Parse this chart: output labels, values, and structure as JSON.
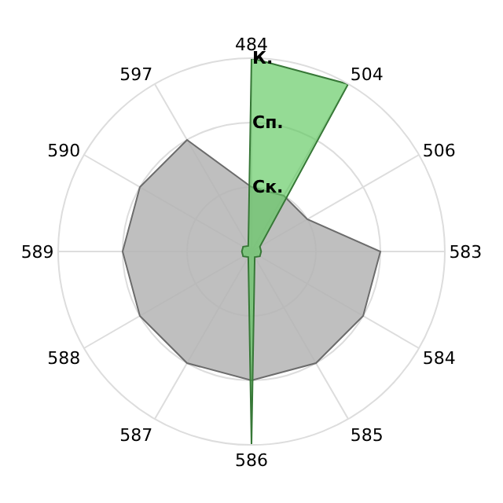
{
  "chart_data": {
    "type": "radar",
    "categories": [
      "484",
      "504",
      "506",
      "583",
      "584",
      "585",
      "586",
      "587",
      "588",
      "589",
      "590",
      "597"
    ],
    "series": [
      {
        "color": "#b4b4b4",
        "values": [
          1,
          1,
          1,
          2,
          2,
          2,
          2,
          2,
          2,
          2,
          2,
          2
        ]
      },
      {
        "color": "#5cc85c",
        "values": [
          3,
          3,
          0.15,
          0.15,
          0.15,
          0.1,
          3,
          0.1,
          0.15,
          0.15,
          0.15,
          0.1
        ]
      }
    ],
    "ylim": [
      0,
      3
    ],
    "yticks": [
      {
        "value": 1,
        "label": "Ск."
      },
      {
        "value": 2,
        "label": "Сп."
      },
      {
        "value": 3,
        "label": "К."
      }
    ],
    "grid": true
  }
}
